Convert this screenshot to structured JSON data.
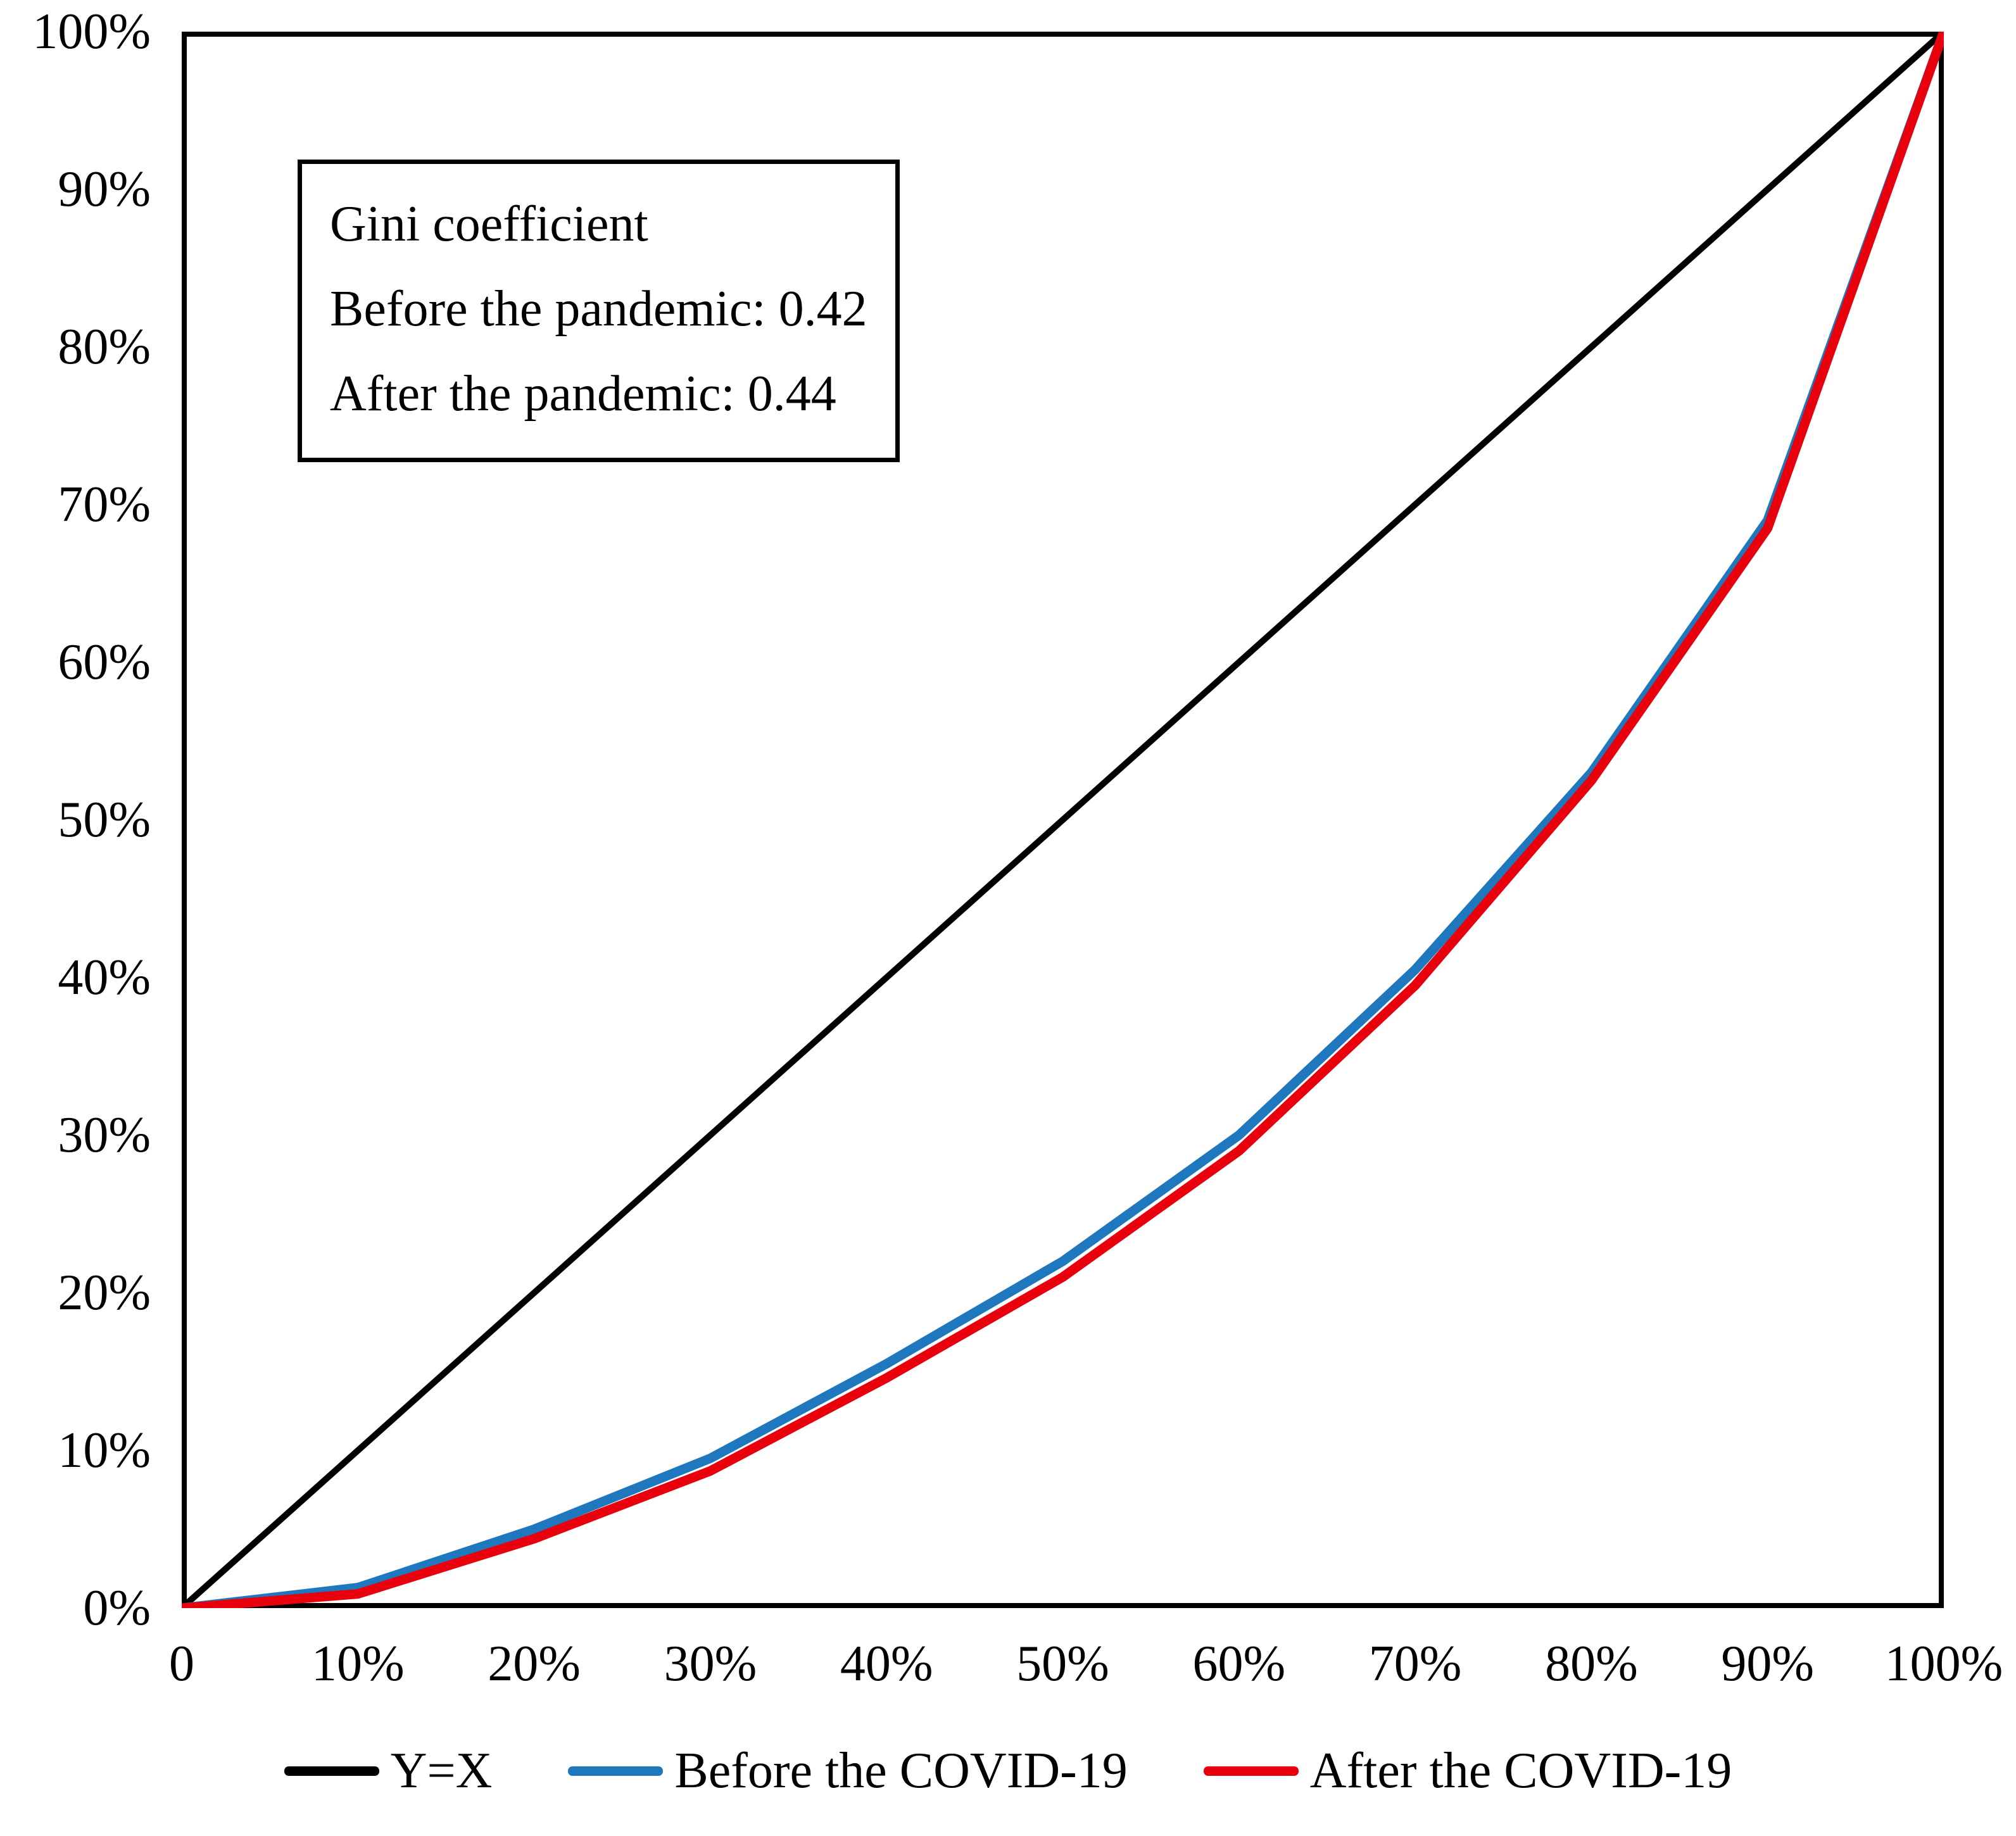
{
  "annotation": {
    "line1": "Gini coefficient",
    "line2": "Before the pandemic: 0.42",
    "line3": "After the pandemic: 0.44"
  },
  "chart_data": {
    "type": "line",
    "x": [
      0,
      10,
      20,
      30,
      40,
      50,
      60,
      70,
      80,
      90,
      100
    ],
    "series": [
      {
        "name": "Y=X",
        "color": "#000000",
        "stroke_px": 10,
        "values": [
          0,
          10,
          20,
          30,
          40,
          50,
          60,
          70,
          80,
          90,
          100
        ]
      },
      {
        "name": "Before the COVID-19",
        "color": "#1F78BE",
        "stroke_px": 15,
        "values": [
          0,
          1.3,
          5.0,
          9.5,
          15.5,
          22.0,
          30.0,
          40.5,
          53.0,
          69.0,
          100
        ]
      },
      {
        "name": "After the COVID-19",
        "color": "#E8000D",
        "stroke_px": 15,
        "values": [
          0,
          0.9,
          4.4,
          8.7,
          14.6,
          21.0,
          29.0,
          39.5,
          52.5,
          68.5,
          100
        ]
      }
    ],
    "x_tick_labels": [
      "0",
      "10%",
      "20%",
      "30%",
      "40%",
      "50%",
      "60%",
      "70%",
      "80%",
      "90%",
      "100%"
    ],
    "y_tick_labels": [
      "0%",
      "10%",
      "20%",
      "30%",
      "40%",
      "50%",
      "60%",
      "70%",
      "80%",
      "90%",
      "100%"
    ],
    "xlim": [
      0,
      100
    ],
    "ylim": [
      0,
      100
    ],
    "grid": false,
    "legend_position": "bottom",
    "annotation_gini_before": 0.42,
    "annotation_gini_after": 0.44,
    "title": "",
    "xlabel": "",
    "ylabel": ""
  },
  "legend": [
    {
      "label": "Y=X",
      "color": "#000000"
    },
    {
      "label": "Before the COVID-19",
      "color": "#1F78BE"
    },
    {
      "label": "After the COVID-19",
      "color": "#E8000D"
    }
  ]
}
